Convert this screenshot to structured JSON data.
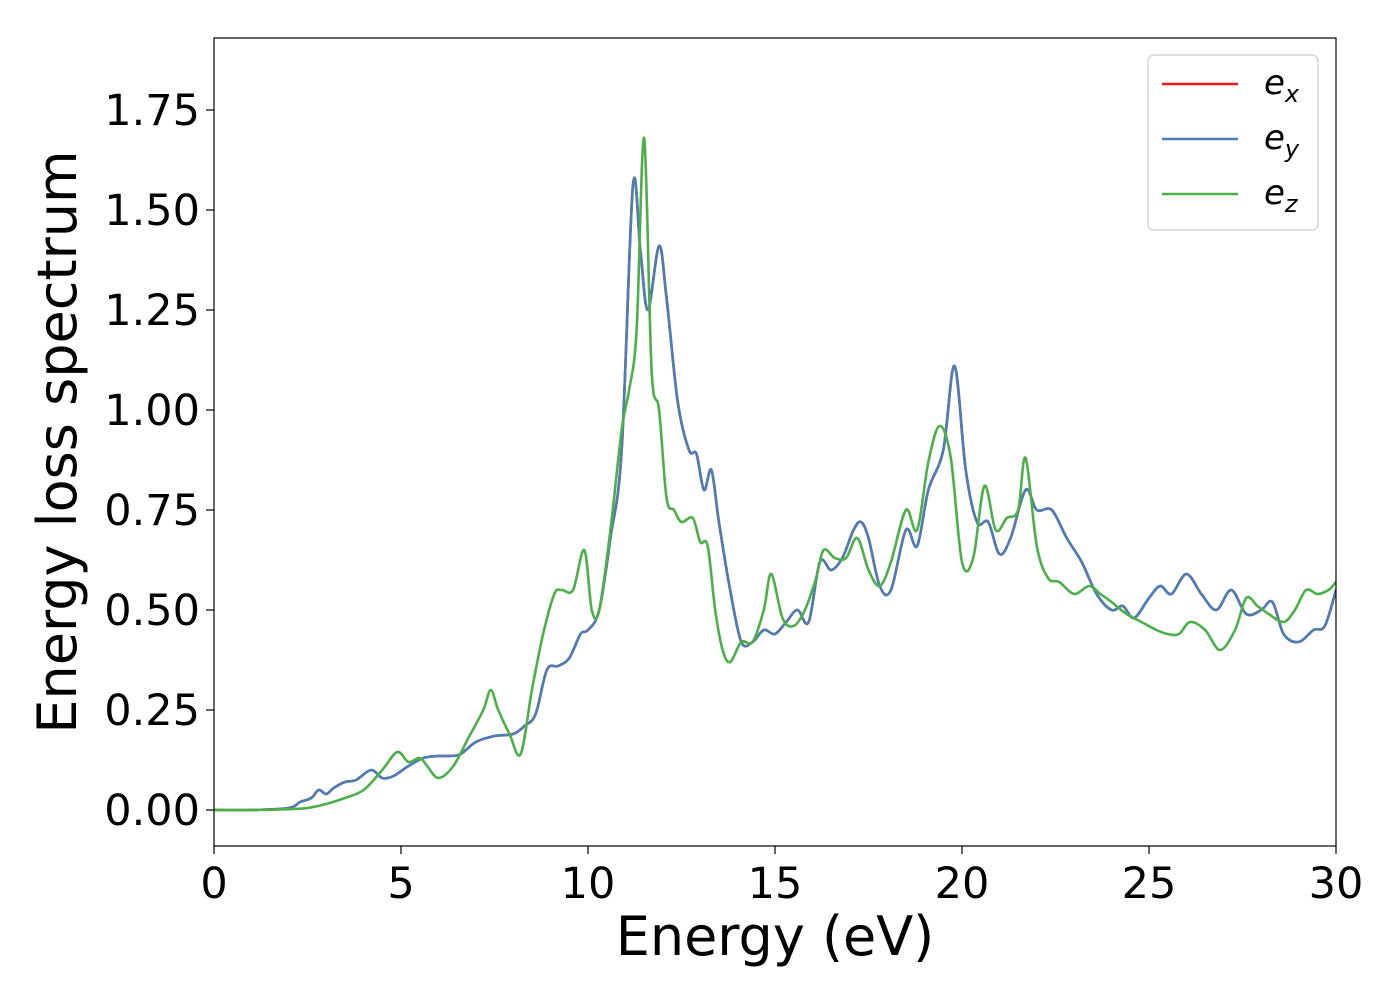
{
  "chart_data": {
    "type": "line",
    "title": "",
    "xlabel": "Energy (eV)",
    "ylabel": "Energy loss spectrum",
    "xlim": [
      0,
      30
    ],
    "ylim": [
      -0.09,
      1.93
    ],
    "xticks": [
      0,
      5,
      10,
      15,
      20,
      25,
      30
    ],
    "xtick_labels": [
      "0",
      "5",
      "10",
      "15",
      "20",
      "25",
      "30"
    ],
    "yticks": [
      0.0,
      0.25,
      0.5,
      0.75,
      1.0,
      1.25,
      1.5,
      1.75
    ],
    "ytick_labels": [
      "0.00",
      "0.25",
      "0.50",
      "0.75",
      "1.00",
      "1.25",
      "1.50",
      "1.75"
    ],
    "grid": false,
    "legend_position": "top-right",
    "series": [
      {
        "name": "e_x",
        "legend_base": "e",
        "legend_sub": "x",
        "color": "#e41a1c",
        "x": [
          0,
          1,
          2,
          2.3,
          2.6,
          2.8,
          3.0,
          3.2,
          3.5,
          3.8,
          4.2,
          4.5,
          4.8,
          5.2,
          5.6,
          6.0,
          6.3,
          6.6,
          7.0,
          7.5,
          8.0,
          8.3,
          8.6,
          8.9,
          9.2,
          9.5,
          9.8,
          10.0,
          10.3,
          10.6,
          10.9,
          11.2,
          11.4,
          11.6,
          11.9,
          12.1,
          12.4,
          12.7,
          12.9,
          13.1,
          13.3,
          13.5,
          13.8,
          14.1,
          14.4,
          14.7,
          15.0,
          15.3,
          15.6,
          15.9,
          16.2,
          16.5,
          16.8,
          17.1,
          17.3,
          17.5,
          17.8,
          18.1,
          18.5,
          18.8,
          19.1,
          19.5,
          19.8,
          20.1,
          20.4,
          20.7,
          21.0,
          21.3,
          21.7,
          22.0,
          22.4,
          22.8,
          23.2,
          23.6,
          24.0,
          24.3,
          24.6,
          25.0,
          25.3,
          25.6,
          26.0,
          26.4,
          26.8,
          27.2,
          27.6,
          28.0,
          28.3,
          28.6,
          29.0,
          29.4,
          29.7,
          30.0
        ],
        "y": [
          0,
          0.0,
          0.005,
          0.02,
          0.03,
          0.05,
          0.04,
          0.055,
          0.07,
          0.075,
          0.1,
          0.08,
          0.085,
          0.11,
          0.13,
          0.135,
          0.135,
          0.14,
          0.17,
          0.185,
          0.19,
          0.21,
          0.24,
          0.35,
          0.36,
          0.38,
          0.44,
          0.45,
          0.5,
          0.68,
          0.9,
          1.56,
          1.4,
          1.25,
          1.41,
          1.28,
          1.02,
          0.9,
          0.89,
          0.8,
          0.85,
          0.72,
          0.55,
          0.42,
          0.42,
          0.45,
          0.44,
          0.47,
          0.5,
          0.47,
          0.62,
          0.6,
          0.63,
          0.7,
          0.72,
          0.68,
          0.56,
          0.55,
          0.7,
          0.66,
          0.8,
          0.9,
          1.11,
          0.85,
          0.72,
          0.72,
          0.64,
          0.68,
          0.8,
          0.75,
          0.75,
          0.68,
          0.62,
          0.54,
          0.5,
          0.51,
          0.48,
          0.53,
          0.56,
          0.54,
          0.59,
          0.54,
          0.5,
          0.55,
          0.49,
          0.5,
          0.52,
          0.44,
          0.42,
          0.45,
          0.46,
          0.55
        ]
      },
      {
        "name": "e_y",
        "legend_base": "e",
        "legend_sub": "y",
        "color": "#4a7eb5",
        "x": [
          0,
          1,
          2,
          2.3,
          2.6,
          2.8,
          3.0,
          3.2,
          3.5,
          3.8,
          4.2,
          4.5,
          4.8,
          5.2,
          5.6,
          6.0,
          6.3,
          6.6,
          7.0,
          7.5,
          8.0,
          8.3,
          8.6,
          8.9,
          9.2,
          9.5,
          9.8,
          10.0,
          10.3,
          10.6,
          10.9,
          11.2,
          11.4,
          11.6,
          11.9,
          12.1,
          12.4,
          12.7,
          12.9,
          13.1,
          13.3,
          13.5,
          13.8,
          14.1,
          14.4,
          14.7,
          15.0,
          15.3,
          15.6,
          15.9,
          16.2,
          16.5,
          16.8,
          17.1,
          17.3,
          17.5,
          17.8,
          18.1,
          18.5,
          18.8,
          19.1,
          19.5,
          19.8,
          20.1,
          20.4,
          20.7,
          21.0,
          21.3,
          21.7,
          22.0,
          22.4,
          22.8,
          23.2,
          23.6,
          24.0,
          24.3,
          24.6,
          25.0,
          25.3,
          25.6,
          26.0,
          26.4,
          26.8,
          27.2,
          27.6,
          28.0,
          28.3,
          28.6,
          29.0,
          29.4,
          29.7,
          30.0
        ],
        "y": [
          0,
          0.0,
          0.005,
          0.02,
          0.03,
          0.05,
          0.04,
          0.055,
          0.07,
          0.075,
          0.1,
          0.08,
          0.085,
          0.11,
          0.13,
          0.135,
          0.135,
          0.14,
          0.17,
          0.185,
          0.19,
          0.21,
          0.24,
          0.35,
          0.36,
          0.38,
          0.44,
          0.45,
          0.5,
          0.68,
          0.9,
          1.56,
          1.4,
          1.25,
          1.41,
          1.28,
          1.02,
          0.9,
          0.89,
          0.8,
          0.85,
          0.72,
          0.55,
          0.42,
          0.42,
          0.45,
          0.44,
          0.47,
          0.5,
          0.47,
          0.62,
          0.6,
          0.63,
          0.7,
          0.72,
          0.68,
          0.56,
          0.55,
          0.7,
          0.66,
          0.8,
          0.9,
          1.11,
          0.85,
          0.72,
          0.72,
          0.64,
          0.68,
          0.8,
          0.75,
          0.75,
          0.68,
          0.62,
          0.54,
          0.5,
          0.51,
          0.48,
          0.53,
          0.56,
          0.54,
          0.59,
          0.54,
          0.5,
          0.55,
          0.49,
          0.5,
          0.52,
          0.44,
          0.42,
          0.45,
          0.46,
          0.55
        ]
      },
      {
        "name": "e_z",
        "legend_base": "e",
        "legend_sub": "z",
        "color": "#4daf4a",
        "x": [
          0,
          1,
          2,
          2.5,
          3.0,
          3.5,
          4.0,
          4.5,
          4.9,
          5.2,
          5.5,
          5.7,
          6.0,
          6.4,
          6.8,
          7.2,
          7.4,
          7.6,
          7.9,
          8.2,
          8.5,
          8.8,
          9.1,
          9.3,
          9.6,
          9.9,
          10.1,
          10.3,
          10.6,
          10.9,
          11.1,
          11.3,
          11.5,
          11.7,
          11.9,
          12.1,
          12.3,
          12.5,
          12.8,
          13.0,
          13.2,
          13.4,
          13.6,
          13.8,
          14.1,
          14.4,
          14.7,
          14.9,
          15.2,
          15.5,
          15.8,
          16.1,
          16.3,
          16.6,
          16.9,
          17.2,
          17.5,
          17.8,
          18.1,
          18.5,
          18.8,
          19.1,
          19.4,
          19.7,
          20.0,
          20.3,
          20.6,
          20.9,
          21.2,
          21.5,
          21.7,
          22.0,
          22.3,
          22.6,
          23.0,
          23.4,
          23.7,
          24.0,
          24.4,
          24.8,
          25.2,
          25.5,
          25.8,
          26.1,
          26.5,
          26.9,
          27.3,
          27.6,
          27.9,
          28.2,
          28.6,
          28.9,
          29.2,
          29.5,
          29.8,
          30.0
        ],
        "y": [
          0,
          0.0,
          0.002,
          0.005,
          0.015,
          0.03,
          0.05,
          0.1,
          0.145,
          0.12,
          0.13,
          0.11,
          0.08,
          0.11,
          0.18,
          0.25,
          0.3,
          0.25,
          0.19,
          0.14,
          0.3,
          0.44,
          0.54,
          0.55,
          0.55,
          0.65,
          0.5,
          0.5,
          0.7,
          0.95,
          1.05,
          1.2,
          1.68,
          1.1,
          1.0,
          0.78,
          0.75,
          0.72,
          0.73,
          0.67,
          0.66,
          0.5,
          0.4,
          0.37,
          0.42,
          0.42,
          0.5,
          0.59,
          0.48,
          0.46,
          0.5,
          0.58,
          0.65,
          0.63,
          0.63,
          0.68,
          0.6,
          0.56,
          0.62,
          0.75,
          0.7,
          0.87,
          0.96,
          0.88,
          0.62,
          0.63,
          0.81,
          0.7,
          0.73,
          0.75,
          0.88,
          0.66,
          0.58,
          0.57,
          0.54,
          0.56,
          0.54,
          0.52,
          0.49,
          0.47,
          0.45,
          0.44,
          0.44,
          0.47,
          0.45,
          0.4,
          0.45,
          0.53,
          0.51,
          0.49,
          0.47,
          0.5,
          0.55,
          0.54,
          0.55,
          0.57
        ]
      }
    ]
  }
}
